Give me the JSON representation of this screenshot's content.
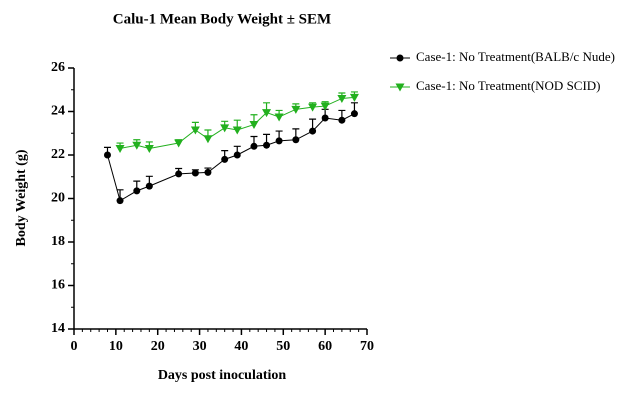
{
  "chart_data": {
    "type": "line",
    "title": "Calu-1 Mean Body Weight ± SEM",
    "x_label": "Days post inoculation",
    "y_label": "Body Weight (g)",
    "xlim": [
      0,
      70
    ],
    "xticks": [
      0,
      10,
      20,
      30,
      40,
      50,
      60,
      70
    ],
    "ylim": [
      14,
      26
    ],
    "yticks": [
      14,
      16,
      18,
      20,
      22,
      24,
      26
    ],
    "grid": false,
    "legend": "right",
    "series": [
      {
        "name": "Case-1: No Treatment(BALB/c Nude)",
        "color": "#000000",
        "marker": "circle",
        "x": [
          8,
          11,
          15,
          18,
          25,
          29,
          32,
          36,
          39,
          43,
          46,
          49,
          53,
          57,
          60,
          64,
          67
        ],
        "values": [
          22.0,
          19.9,
          20.35,
          20.57,
          21.13,
          21.17,
          21.2,
          21.8,
          22.0,
          22.4,
          22.45,
          22.65,
          22.7,
          23.1,
          23.7,
          23.6,
          23.9
        ],
        "errors": [
          0.35,
          0.5,
          0.45,
          0.45,
          0.25,
          0.15,
          0.2,
          0.4,
          0.4,
          0.45,
          0.5,
          0.45,
          0.5,
          0.55,
          0.4,
          0.45,
          0.5
        ]
      },
      {
        "name": "Case-1: No Treatment(NOD SCID)",
        "color": "#22b01e",
        "marker": "triangle-down",
        "x": [
          11,
          15,
          18,
          25,
          29,
          32,
          36,
          39,
          43,
          46,
          49,
          53,
          57,
          60,
          64,
          67
        ],
        "values": [
          22.3,
          22.45,
          22.3,
          22.55,
          23.15,
          22.75,
          23.25,
          23.15,
          23.4,
          23.95,
          23.75,
          24.1,
          24.2,
          24.25,
          24.6,
          24.65
        ],
        "errors": [
          0.25,
          0.25,
          0.3,
          0.15,
          0.35,
          0.4,
          0.3,
          0.45,
          0.45,
          0.45,
          0.3,
          0.25,
          0.2,
          0.2,
          0.25,
          0.25
        ]
      }
    ]
  }
}
